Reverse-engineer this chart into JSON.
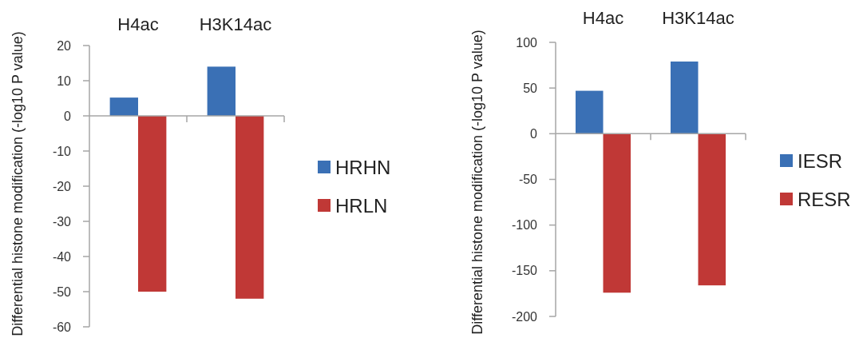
{
  "chart_data": [
    {
      "type": "bar",
      "categories": [
        "H4ac",
        "H3K14ac"
      ],
      "ylabel": "Differential histone modification (-log10 P value)",
      "ylim": [
        -60,
        20
      ],
      "yticks": [
        -60,
        -50,
        -40,
        -30,
        -20,
        -10,
        0,
        10,
        20
      ],
      "legend": "right",
      "series": [
        {
          "name": "HRHN",
          "color": "#3a70b5",
          "values": [
            5.2,
            14
          ]
        },
        {
          "name": "HRLN",
          "color": "#c03836",
          "values": [
            -50,
            -52
          ]
        }
      ]
    },
    {
      "type": "bar",
      "categories": [
        "H4ac",
        "H3K14ac"
      ],
      "ylabel": "Differential histone modification (-log10 P value)",
      "ylim": [
        -200,
        100
      ],
      "yticks": [
        -200,
        -150,
        -100,
        -50,
        0,
        50,
        100
      ],
      "legend": "right",
      "series": [
        {
          "name": "IESR",
          "color": "#3a70b5",
          "values": [
            47,
            79
          ]
        },
        {
          "name": "RESR",
          "color": "#c03836",
          "values": [
            -174,
            -166
          ]
        }
      ]
    }
  ]
}
